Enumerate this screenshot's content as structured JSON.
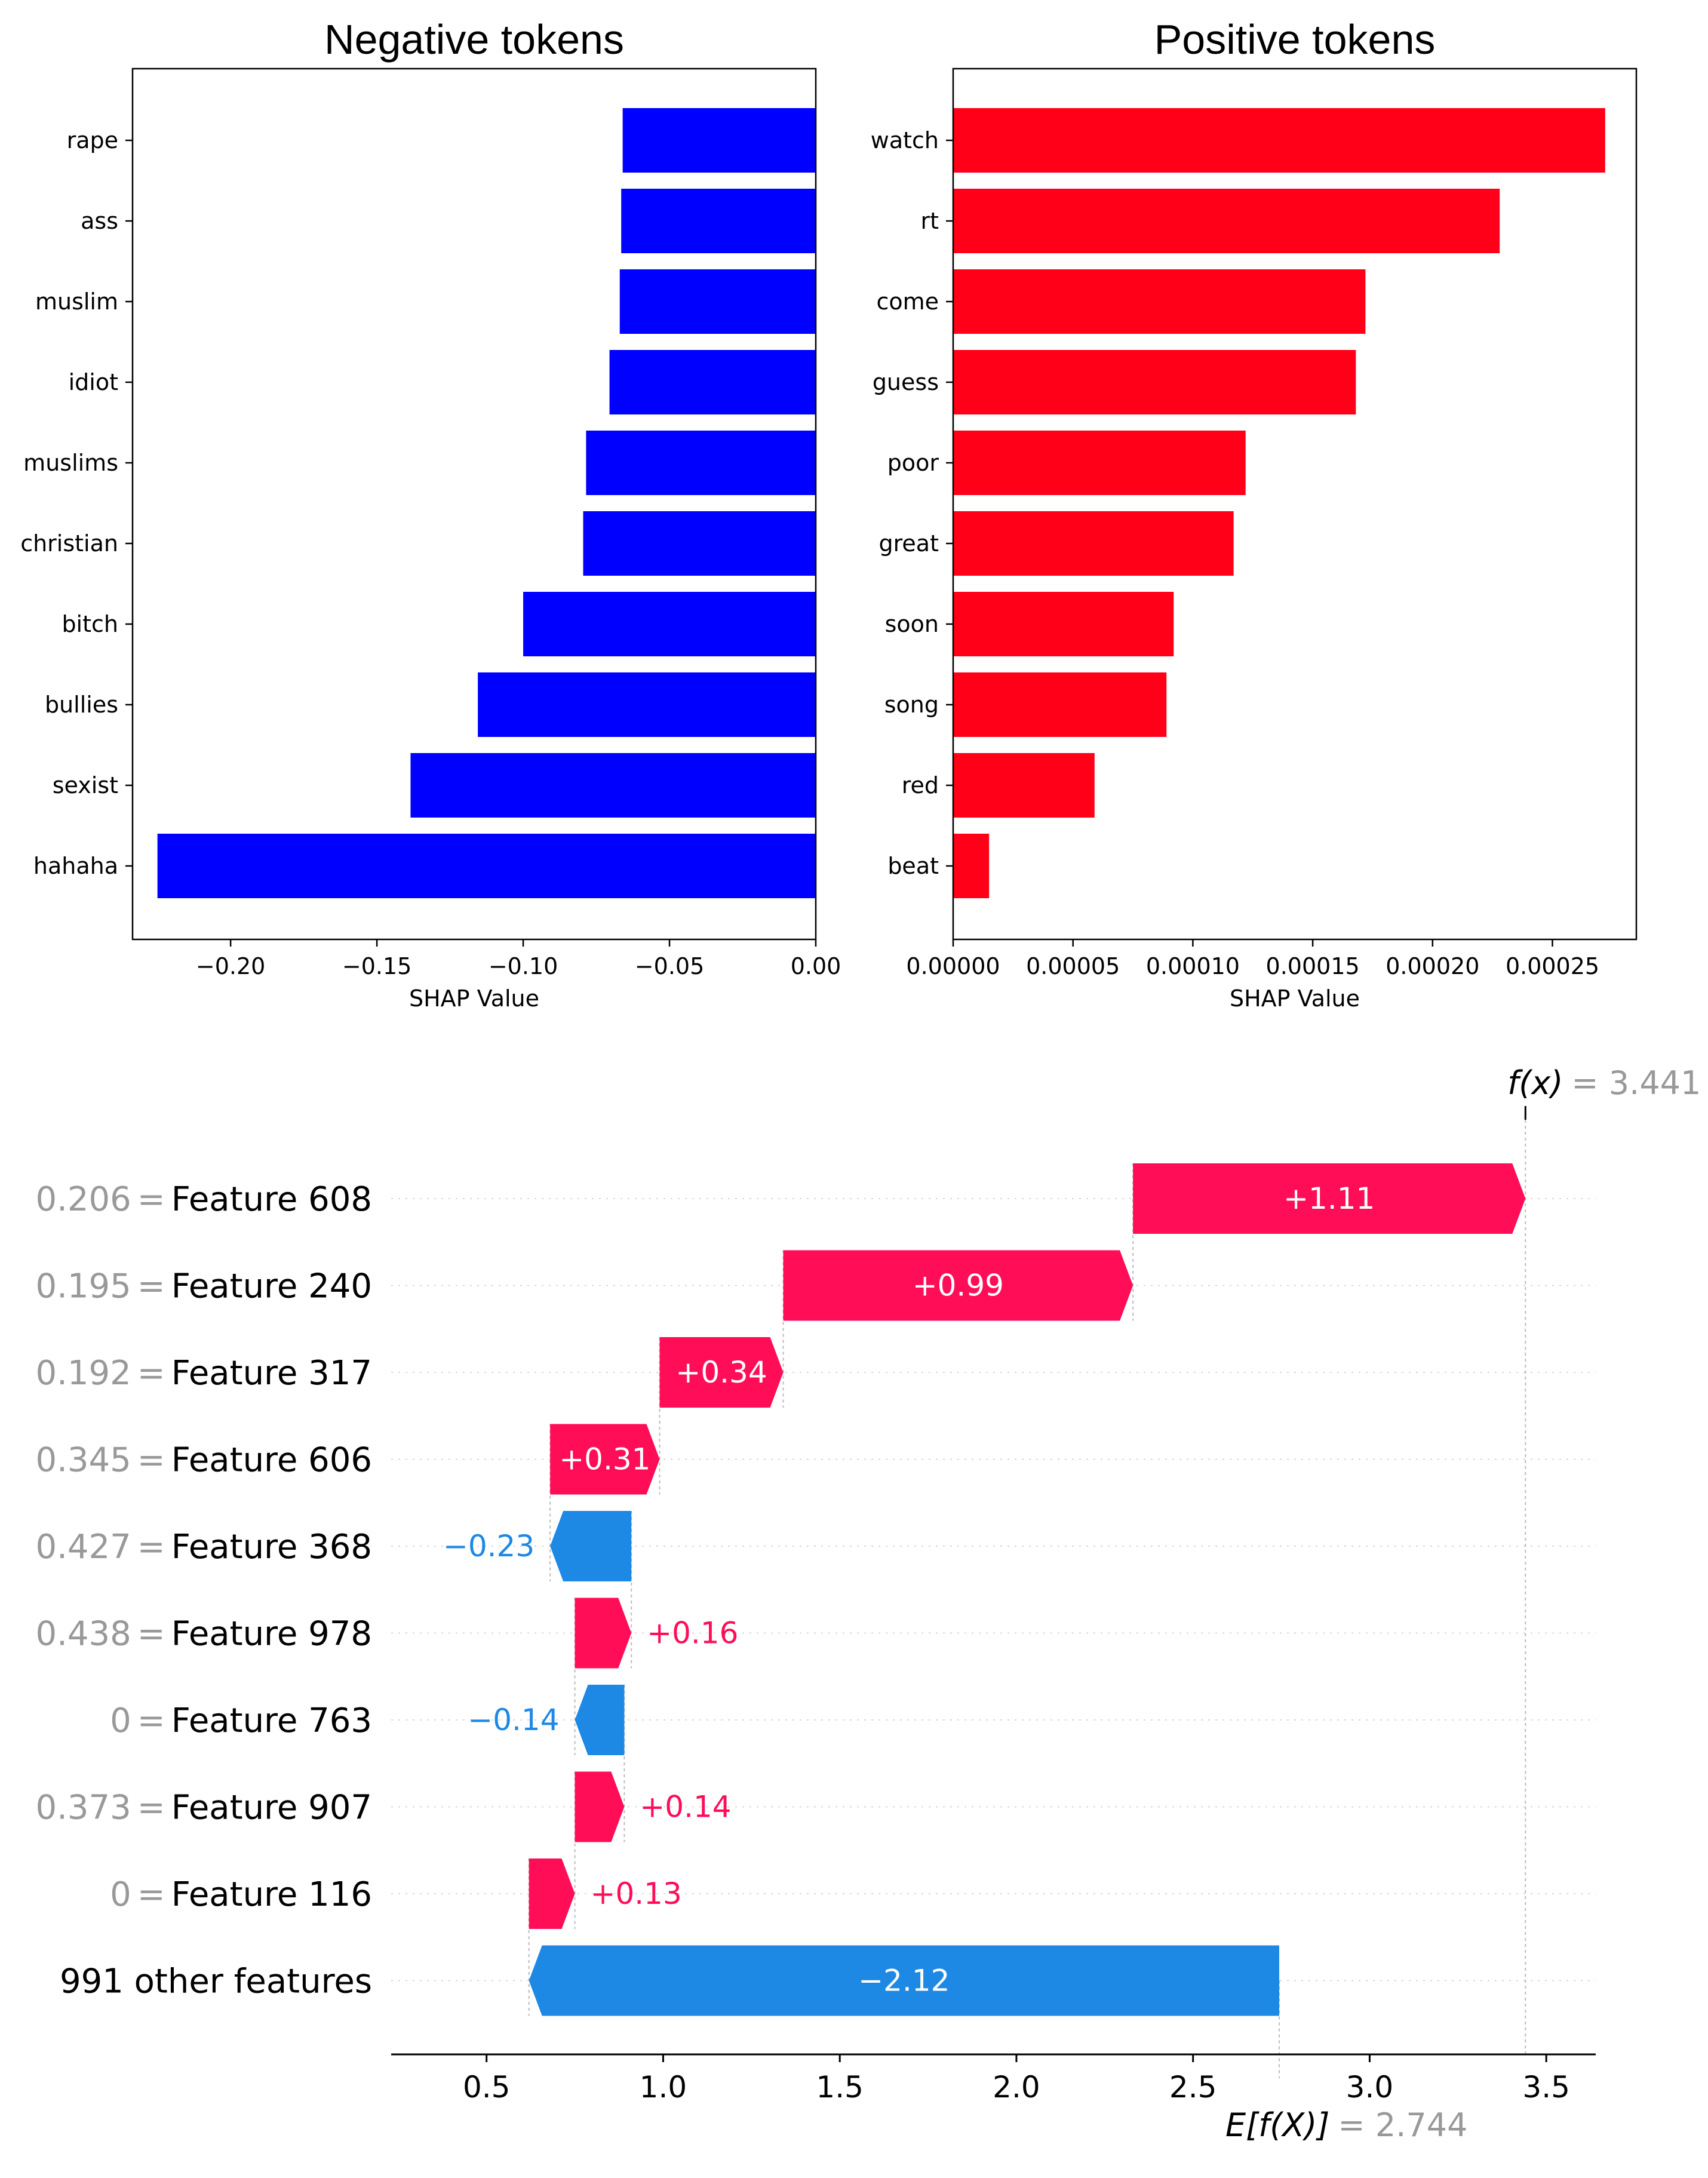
{
  "colors": {
    "negative_bar": "#0000ff",
    "positive_bar": "#ff0018",
    "wf_positive": "#ff0d57",
    "wf_negative": "#1e88e5",
    "muted_text": "#999999"
  },
  "chart_data": [
    {
      "type": "bar",
      "orientation": "horizontal",
      "title": "Negative tokens",
      "xlabel": "SHAP Value",
      "ylabel": "",
      "xlim": [
        -0.2335,
        0.0
      ],
      "xticks": [
        -0.2,
        -0.15,
        -0.1,
        -0.05,
        0.0
      ],
      "xtick_labels": [
        "−0.20",
        "−0.15",
        "−0.10",
        "−0.05",
        "0.00"
      ],
      "categories": [
        "rape",
        "ass",
        "muslim",
        "idiot",
        "muslims",
        "christian",
        "bitch",
        "bullies",
        "sexist",
        "hahaha"
      ],
      "values": [
        -0.066,
        -0.0665,
        -0.067,
        -0.0705,
        -0.0785,
        -0.0795,
        -0.1,
        -0.1155,
        -0.1385,
        -0.225
      ]
    },
    {
      "type": "bar",
      "orientation": "horizontal",
      "title": "Positive tokens",
      "xlabel": "SHAP Value",
      "ylabel": "",
      "xlim": [
        0.0,
        0.000285
      ],
      "xticks": [
        0.0,
        5e-05,
        0.0001,
        0.00015,
        0.0002,
        0.00025
      ],
      "xtick_labels": [
        "0.00000",
        "0.00005",
        "0.00010",
        "0.00015",
        "0.00020",
        "0.00025"
      ],
      "categories": [
        "watch",
        "rt",
        "come",
        "guess",
        "poor",
        "great",
        "soon",
        "song",
        "red",
        "beat"
      ],
      "values": [
        0.000272,
        0.000228,
        0.000172,
        0.000168,
        0.000122,
        0.000117,
        9.2e-05,
        8.9e-05,
        5.9e-05,
        1.5e-05
      ]
    },
    {
      "type": "waterfall",
      "title": "",
      "xlim": [
        0.23,
        3.64
      ],
      "xticks": [
        0.5,
        1.0,
        1.5,
        2.0,
        2.5,
        3.0,
        3.5
      ],
      "xtick_labels": [
        "0.5",
        "1.0",
        "1.5",
        "2.0",
        "2.5",
        "3.0",
        "3.5"
      ],
      "fx_label": "f(x)",
      "fx_text": "= 3.441",
      "fx_value": 3.441,
      "efx_label": "E[f(X)]",
      "efx_text": "= 2.744",
      "efx_value": 2.744,
      "rows": [
        {
          "value_label": "0.206",
          "feature": "Feature 608",
          "contribution": 1.11,
          "label": "+1.11",
          "start": 2.33,
          "end": 3.441
        },
        {
          "value_label": "0.195",
          "feature": "Feature 240",
          "contribution": 0.99,
          "label": "+0.99",
          "start": 1.34,
          "end": 2.33
        },
        {
          "value_label": "0.192",
          "feature": "Feature 317",
          "contribution": 0.34,
          "label": "+0.34",
          "start": 0.99,
          "end": 1.34
        },
        {
          "value_label": "0.345",
          "feature": "Feature 606",
          "contribution": 0.31,
          "label": "+0.31",
          "start": 0.68,
          "end": 0.99
        },
        {
          "value_label": "0.427",
          "feature": "Feature 368",
          "contribution": -0.23,
          "label": "−0.23",
          "start": 0.91,
          "end": 0.68
        },
        {
          "value_label": "0.438",
          "feature": "Feature 978",
          "contribution": 0.16,
          "label": "+0.16",
          "start": 0.75,
          "end": 0.91
        },
        {
          "value_label": "0",
          "feature": "Feature 763",
          "contribution": -0.14,
          "label": "−0.14",
          "start": 0.89,
          "end": 0.75
        },
        {
          "value_label": "0.373",
          "feature": "Feature 907",
          "contribution": 0.14,
          "label": "+0.14",
          "start": 0.75,
          "end": 0.89
        },
        {
          "value_label": "0",
          "feature": "Feature 116",
          "contribution": 0.13,
          "label": "+0.13",
          "start": 0.62,
          "end": 0.75
        },
        {
          "value_label": "",
          "feature": "991 other features",
          "contribution": -2.12,
          "label": "−2.12",
          "start": 2.744,
          "end": 0.62
        }
      ]
    }
  ]
}
